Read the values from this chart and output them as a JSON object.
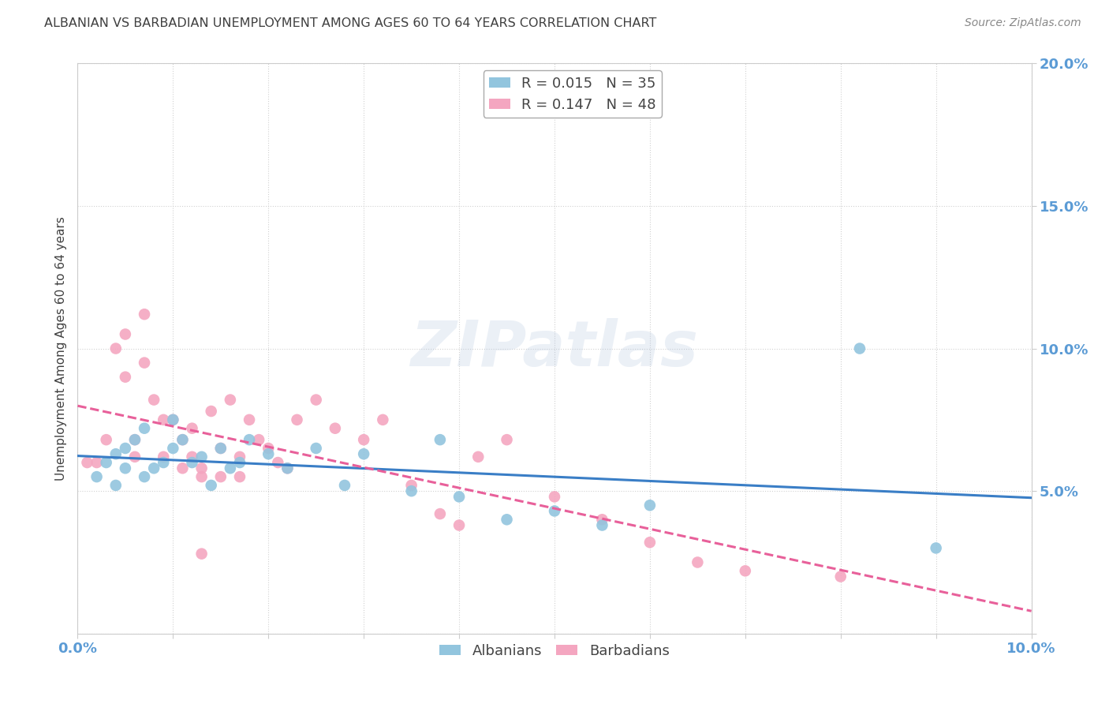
{
  "title": "ALBANIAN VS BARBADIAN UNEMPLOYMENT AMONG AGES 60 TO 64 YEARS CORRELATION CHART",
  "source": "Source: ZipAtlas.com",
  "ylabel": "Unemployment Among Ages 60 to 64 years",
  "xlim": [
    0.0,
    0.1
  ],
  "ylim": [
    0.0,
    0.2
  ],
  "watermark_text": "ZIPatlas",
  "albanian_R": 0.015,
  "albanian_N": 35,
  "barbadian_R": 0.147,
  "barbadian_N": 48,
  "albanian_color": "#92c5de",
  "barbadian_color": "#f4a6c0",
  "albanian_line_color": "#3a7ec6",
  "barbadian_line_color": "#e8609a",
  "albanian_x": [
    0.002,
    0.003,
    0.004,
    0.004,
    0.005,
    0.005,
    0.006,
    0.007,
    0.007,
    0.008,
    0.009,
    0.01,
    0.01,
    0.011,
    0.012,
    0.013,
    0.014,
    0.015,
    0.016,
    0.017,
    0.018,
    0.02,
    0.022,
    0.025,
    0.028,
    0.03,
    0.035,
    0.038,
    0.04,
    0.045,
    0.05,
    0.055,
    0.06,
    0.082,
    0.09
  ],
  "albanian_y": [
    0.055,
    0.06,
    0.052,
    0.063,
    0.058,
    0.065,
    0.068,
    0.055,
    0.072,
    0.058,
    0.06,
    0.065,
    0.075,
    0.068,
    0.06,
    0.062,
    0.052,
    0.065,
    0.058,
    0.06,
    0.068,
    0.063,
    0.058,
    0.065,
    0.052,
    0.063,
    0.05,
    0.068,
    0.048,
    0.04,
    0.043,
    0.038,
    0.045,
    0.1,
    0.03
  ],
  "barbadian_x": [
    0.001,
    0.002,
    0.003,
    0.004,
    0.005,
    0.005,
    0.006,
    0.006,
    0.007,
    0.007,
    0.008,
    0.009,
    0.009,
    0.01,
    0.011,
    0.011,
    0.012,
    0.012,
    0.013,
    0.013,
    0.014,
    0.015,
    0.015,
    0.016,
    0.017,
    0.017,
    0.018,
    0.019,
    0.02,
    0.021,
    0.022,
    0.023,
    0.025,
    0.027,
    0.03,
    0.032,
    0.035,
    0.038,
    0.04,
    0.042,
    0.045,
    0.05,
    0.055,
    0.06,
    0.065,
    0.07,
    0.08,
    0.013
  ],
  "barbadian_y": [
    0.06,
    0.06,
    0.068,
    0.1,
    0.105,
    0.09,
    0.062,
    0.068,
    0.112,
    0.095,
    0.082,
    0.062,
    0.075,
    0.075,
    0.068,
    0.058,
    0.072,
    0.062,
    0.058,
    0.055,
    0.078,
    0.065,
    0.055,
    0.082,
    0.062,
    0.055,
    0.075,
    0.068,
    0.065,
    0.06,
    0.058,
    0.075,
    0.082,
    0.072,
    0.068,
    0.075,
    0.052,
    0.042,
    0.038,
    0.062,
    0.068,
    0.048,
    0.04,
    0.032,
    0.025,
    0.022,
    0.02,
    0.028
  ],
  "background_color": "#ffffff",
  "grid_color": "#cccccc",
  "title_color": "#404040",
  "source_color": "#888888",
  "axis_label_color": "#5b9bd5",
  "tick_label_color": "#5b9bd5"
}
